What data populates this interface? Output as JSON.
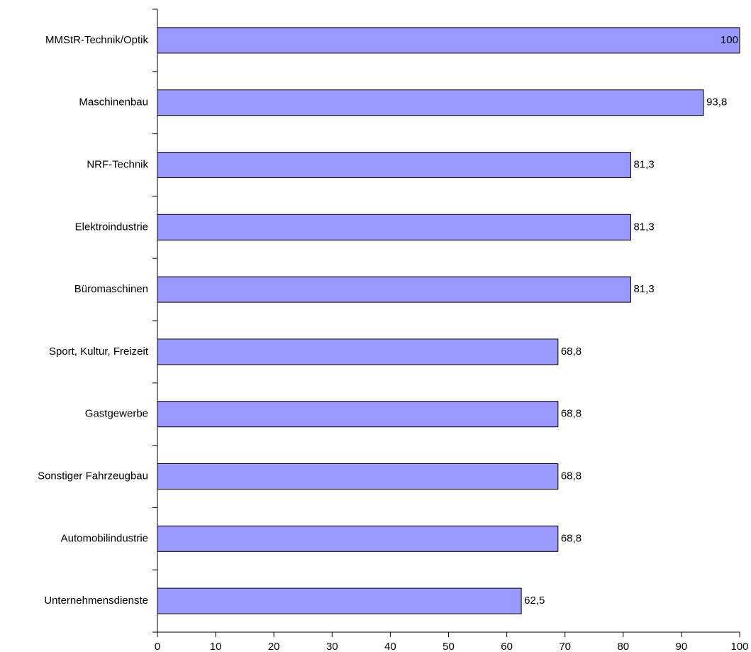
{
  "chart_data": {
    "type": "hbar",
    "categories": [
      "MMStR-Technik/Optik",
      "Maschinenbau",
      "NRF-Technik",
      "Elektroindustrie",
      "Büromaschinen",
      "Sport, Kultur, Freizeit",
      "Gastgewerbe",
      "Sonstiger Fahrzeugbau",
      "Automobilindustrie",
      "Unternehmensdienste"
    ],
    "values": [
      100,
      93.8,
      81.3,
      81.3,
      81.3,
      68.8,
      68.8,
      68.8,
      68.8,
      62.5
    ],
    "value_labels": [
      "100",
      "93,8",
      "81,3",
      "81,3",
      "81,3",
      "68,8",
      "68,8",
      "68,8",
      "68,8",
      "62,5"
    ],
    "color": "#9999ff",
    "xlim": [
      0,
      100
    ],
    "xticks": [
      0,
      10,
      20,
      30,
      40,
      50,
      60,
      70,
      80,
      90,
      100
    ],
    "grid": false
  }
}
